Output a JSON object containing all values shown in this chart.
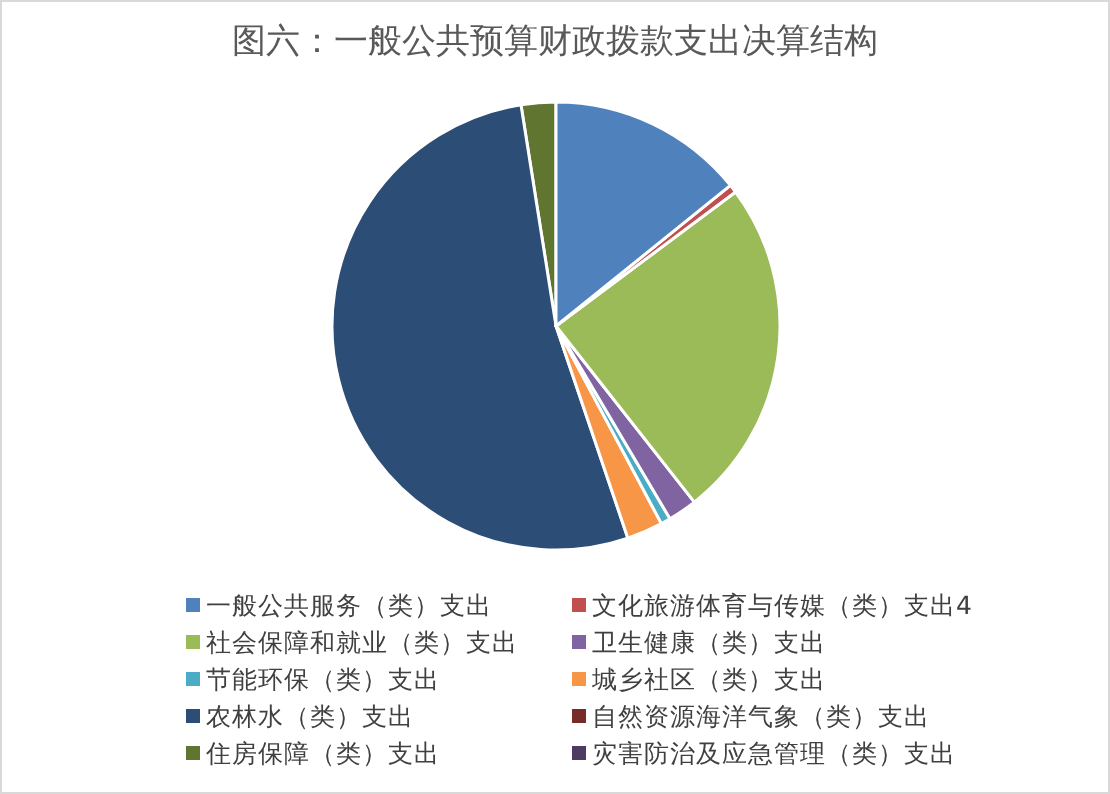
{
  "chart_data": {
    "type": "pie",
    "title": "图六：一般公共预算财政拨款支出决算结构",
    "categories": [
      "一般公共服务（类）支出",
      "文化旅游体育与传媒（类）支出4",
      "社会保障和就业（类）支出",
      "卫生健康（类）支出",
      "节能环保（类）支出",
      "城乡社区（类）支出",
      "农林水（类）支出",
      "自然资源海洋气象（类）支出",
      "住房保障（类）支出",
      "灾害防治及应急管理（类）支出"
    ],
    "values": [
      14.2,
      0.6,
      24.6,
      2.1,
      0.7,
      2.6,
      52.7,
      null,
      2.5,
      null
    ],
    "colors": [
      "#4f81bd",
      "#c0504d",
      "#9bbb59",
      "#8064a2",
      "#4bacc6",
      "#f79646",
      "#2c4d75",
      "#772c2a",
      "#5f7530",
      "#4d3b62"
    ],
    "legend": "bottom"
  }
}
